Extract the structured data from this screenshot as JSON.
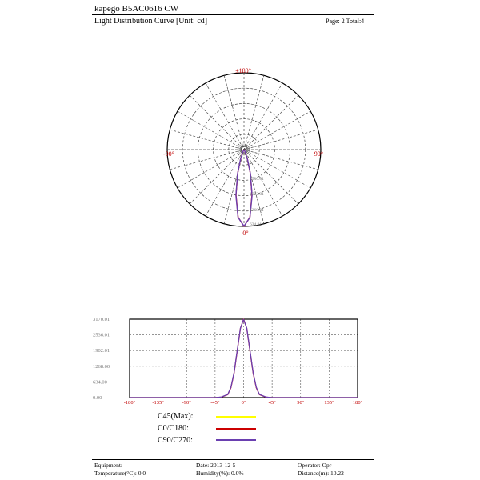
{
  "header": {
    "title": "kapego B5AC0616  CW",
    "subtitle": "Light Distribution Curve [Unit: cd]",
    "page": "Page: 2  Total:4"
  },
  "polar": {
    "angle_labels": {
      "top": "±180°",
      "left": "-90°",
      "right": "90°",
      "bottom": "0°"
    },
    "radial_labels": [
      "2536.01",
      "1902.01",
      "1268.01",
      "634.01"
    ]
  },
  "legend": [
    {
      "label": "C45(Max):",
      "color": "#ffff00"
    },
    {
      "label": "C0/C180:",
      "color": "#cc0000"
    },
    {
      "label": "C90/C270:",
      "color": "#6a3fb0"
    }
  ],
  "footer": {
    "equipment": "Equipment:",
    "temperature": "Temperature(°C): 0.0",
    "date": "Date: 2013-12-5",
    "humidity": "Humidity(%): 0.0%",
    "operator": "Operator: Opr",
    "distance": "Distance(m): 10.22"
  },
  "chart_data": {
    "type": "line",
    "x_ticks": [
      "-180°",
      "-135°",
      "-90°",
      "-45°",
      "0°",
      "45°",
      "90°",
      "135°",
      "180°"
    ],
    "y_ticks": [
      "0.00",
      "634.00",
      "1268.00",
      "1902.01",
      "2536.01",
      "3170.01"
    ],
    "xlim": [
      -180,
      180
    ],
    "ylim": [
      0,
      3170.01
    ],
    "grid": true,
    "series": [
      {
        "name": "C0/C180",
        "color": "#cc0000",
        "x": [
          -180,
          -90,
          -45,
          -35,
          -25,
          -20,
          -15,
          -10,
          -5,
          0,
          5,
          10,
          15,
          20,
          25,
          35,
          45,
          90,
          180
        ],
        "y": [
          0,
          0,
          0,
          20,
          120,
          400,
          1000,
          1900,
          2800,
          3170,
          2800,
          1900,
          1000,
          400,
          120,
          20,
          0,
          0,
          0
        ]
      },
      {
        "name": "C90/C270",
        "color": "#6a3fb0",
        "x": [
          -180,
          -90,
          -45,
          -35,
          -25,
          -20,
          -15,
          -10,
          -5,
          0,
          5,
          10,
          15,
          20,
          25,
          35,
          45,
          90,
          180
        ],
        "y": [
          0,
          0,
          0,
          25,
          130,
          420,
          1020,
          1920,
          2810,
          3160,
          2810,
          1920,
          1020,
          420,
          130,
          25,
          0,
          0,
          0
        ]
      }
    ]
  }
}
